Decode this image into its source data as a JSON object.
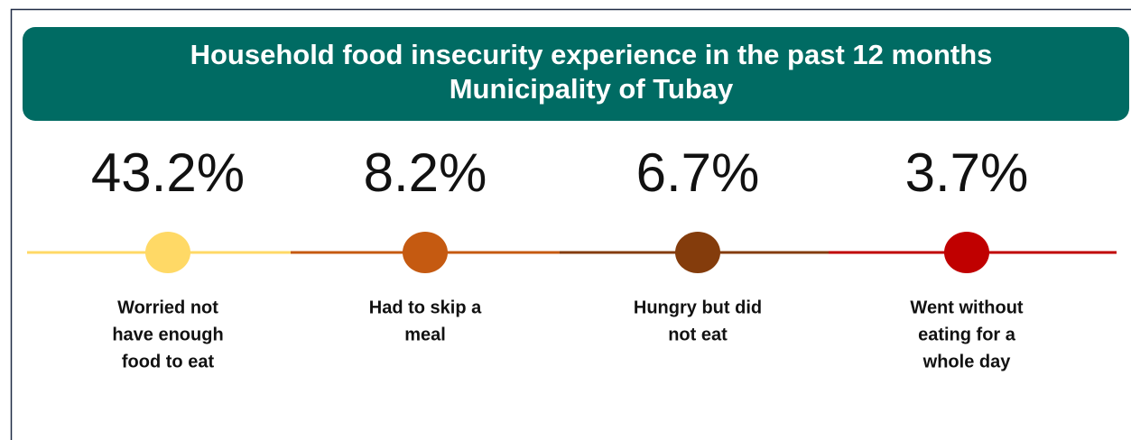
{
  "header": {
    "title": [
      "Household food insecurity experience in the past 12 months",
      "Municipality of Tubay"
    ]
  },
  "items": [
    {
      "value": "43.2%",
      "label": [
        "Worried not",
        "have enough",
        "food to eat"
      ]
    },
    {
      "value": "8.2%",
      "label": [
        "Had to skip a",
        "meal"
      ]
    },
    {
      "value": "6.7%",
      "label": [
        "Hungry but did",
        "not eat"
      ]
    },
    {
      "value": "3.7%",
      "label": [
        "Went without",
        "eating for a",
        "whole day"
      ]
    }
  ]
}
